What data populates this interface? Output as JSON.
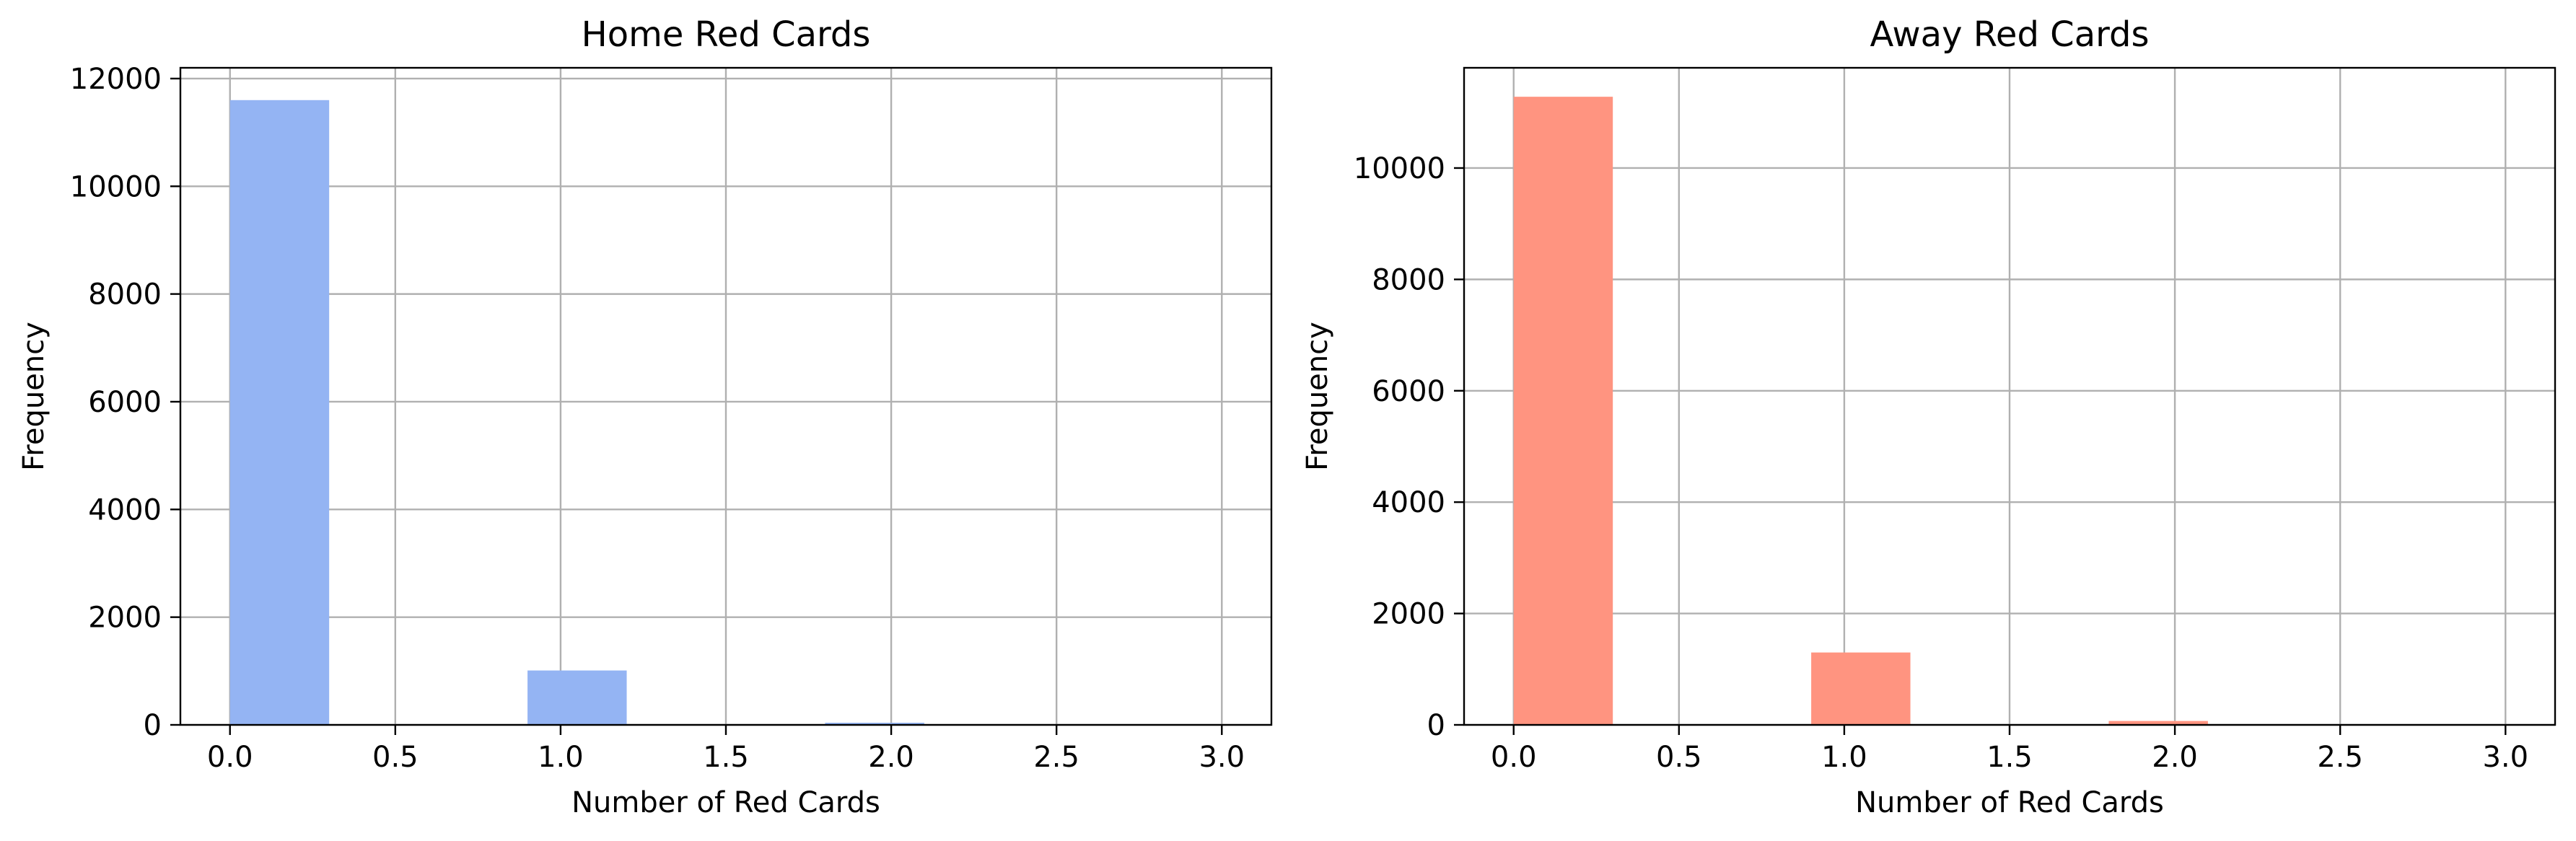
{
  "chart_data": [
    {
      "type": "bar",
      "title": "Home Red Cards",
      "xlabel": "Number of Red Cards",
      "ylabel": "Frequency",
      "xlim": [
        -0.15,
        3.15
      ],
      "ylim": [
        0,
        12200
      ],
      "xticks": [
        "0.0",
        "0.5",
        "1.0",
        "1.5",
        "2.0",
        "2.5",
        "3.0"
      ],
      "yticks": [
        "0",
        "2000",
        "4000",
        "6000",
        "8000",
        "10000",
        "12000"
      ],
      "grid": true,
      "color": "#94b4f3",
      "bins": [
        {
          "x0": 0.0,
          "x1": 0.3,
          "value": 11600
        },
        {
          "x0": 0.9,
          "x1": 1.2,
          "value": 1010
        },
        {
          "x0": 1.8,
          "x1": 2.1,
          "value": 40
        }
      ]
    },
    {
      "type": "bar",
      "title": "Away Red Cards",
      "xlabel": "Number of Red Cards",
      "ylabel": "Frequency",
      "xlim": [
        -0.15,
        3.15
      ],
      "ylim": [
        0,
        11800
      ],
      "xticks": [
        "0.0",
        "0.5",
        "1.0",
        "1.5",
        "2.0",
        "2.5",
        "3.0"
      ],
      "yticks": [
        "0",
        "2000",
        "4000",
        "6000",
        "8000",
        "10000"
      ],
      "grid": true,
      "color": "#ff9480",
      "bins": [
        {
          "x0": 0.0,
          "x1": 0.3,
          "value": 11280
        },
        {
          "x0": 0.9,
          "x1": 1.2,
          "value": 1300
        },
        {
          "x0": 1.8,
          "x1": 2.1,
          "value": 70
        }
      ]
    }
  ]
}
